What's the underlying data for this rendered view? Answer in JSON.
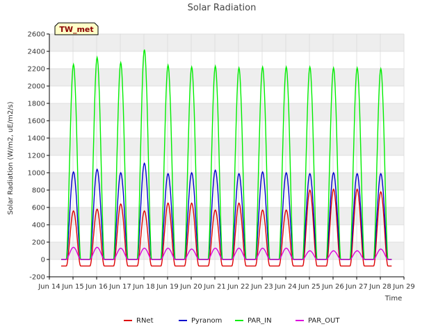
{
  "badge": "TW_met",
  "colors": {
    "band": "#eeeeee",
    "grid": "#d9d9d9",
    "axis": "#000000",
    "badge_bg": "#ffffc8"
  },
  "chart_data": {
    "type": "line",
    "title": "Solar Radiation",
    "xlabel": "Time",
    "ylabel": "Solar Radiation (W/m2, uE/m2/s)",
    "xlim": [
      "Jun 14",
      "Jun 29"
    ],
    "ylim": [
      -200,
      2600
    ],
    "x_ticks": [
      "Jun 14",
      "Jun 15",
      "Jun 16",
      "Jun 17",
      "Jun 18",
      "Jun 19",
      "Jun 20",
      "Jun 21",
      "Jun 22",
      "Jun 23",
      "Jun 24",
      "Jun 25",
      "Jun 26",
      "Jun 27",
      "Jun 28",
      "Jun 29"
    ],
    "y_ticks": [
      -200,
      0,
      200,
      400,
      600,
      800,
      1000,
      1200,
      1400,
      1600,
      1800,
      2000,
      2200,
      2400,
      2600
    ],
    "grid": true,
    "legend_position": "bottom",
    "days": [
      "Jun 14",
      "Jun 15",
      "Jun 16",
      "Jun 17",
      "Jun 18",
      "Jun 19",
      "Jun 20",
      "Jun 21",
      "Jun 22",
      "Jun 23",
      "Jun 24",
      "Jun 25",
      "Jun 26",
      "Jun 27"
    ],
    "series": [
      {
        "name": "RNet",
        "color": "#dd0000",
        "daily_peak": [
          560,
          580,
          640,
          560,
          650,
          650,
          570,
          650,
          570,
          570,
          800,
          810,
          810,
          780
        ],
        "night_value": -75
      },
      {
        "name": "Pyranom",
        "color": "#0000cc",
        "daily_peak": [
          1010,
          1040,
          1000,
          1110,
          990,
          1000,
          1030,
          990,
          1010,
          1000,
          990,
          1000,
          990,
          990
        ],
        "night_value": 0
      },
      {
        "name": "PAR_IN",
        "color": "#00ee00",
        "daily_peak": [
          2250,
          2330,
          2270,
          2420,
          2240,
          2220,
          2230,
          2210,
          2220,
          2220,
          2220,
          2210,
          2210,
          2200
        ],
        "night_value": 0
      },
      {
        "name": "PAR_OUT",
        "color": "#dd00dd",
        "daily_peak": [
          140,
          140,
          130,
          130,
          130,
          120,
          130,
          130,
          130,
          130,
          100,
          100,
          100,
          120
        ],
        "night_value": 0
      }
    ]
  }
}
